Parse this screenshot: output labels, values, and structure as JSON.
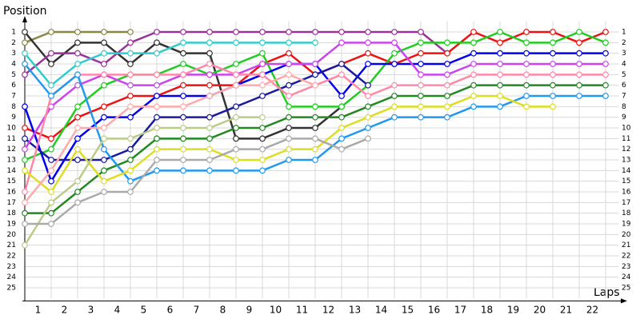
{
  "chart_data": {
    "type": "line",
    "ylabel": "Position",
    "xlabel": "Laps",
    "reversed": true,
    "grid": true,
    "x": [
      0,
      1,
      2,
      3,
      4,
      5,
      6,
      7,
      8,
      9,
      10,
      11,
      12,
      13,
      14,
      15,
      16,
      17,
      18,
      19,
      20,
      21,
      22
    ],
    "xlim": [
      0,
      22.5
    ],
    "xticks": [
      {
        "value": 0.5,
        "label": "1"
      },
      {
        "value": 1.5,
        "label": "2"
      },
      {
        "value": 2.5,
        "label": "3"
      },
      {
        "value": 3.5,
        "label": "4"
      },
      {
        "value": 4.5,
        "label": "5"
      },
      {
        "value": 5.5,
        "label": "6"
      },
      {
        "value": 6.5,
        "label": "7"
      },
      {
        "value": 7.5,
        "label": "8"
      },
      {
        "value": 8.5,
        "label": "9"
      },
      {
        "value": 9.5,
        "label": "10"
      },
      {
        "value": 10.5,
        "label": "11"
      },
      {
        "value": 11.5,
        "label": "12"
      },
      {
        "value": 12.5,
        "label": "13"
      },
      {
        "value": 13.5,
        "label": "14"
      },
      {
        "value": 14.5,
        "label": "15"
      },
      {
        "value": 15.5,
        "label": "16"
      },
      {
        "value": 16.5,
        "label": "17"
      },
      {
        "value": 17.5,
        "label": "18"
      },
      {
        "value": 18.5,
        "label": "19"
      },
      {
        "value": 19.5,
        "label": "20"
      },
      {
        "value": 20.5,
        "label": "21"
      },
      {
        "value": 21.5,
        "label": "22"
      }
    ],
    "ylim": [
      0,
      26
    ],
    "yticks": [
      1,
      2,
      3,
      4,
      5,
      6,
      7,
      8,
      9,
      10,
      11,
      12,
      13,
      14,
      15,
      16,
      17,
      18,
      19,
      20,
      21,
      22,
      23,
      24,
      25
    ],
    "series": [
      {
        "color": "#888844",
        "values": [
          2,
          1,
          1,
          1,
          1,
          null,
          null,
          null,
          null,
          null,
          null,
          null,
          null,
          null,
          null,
          null,
          null,
          null,
          null,
          null,
          null,
          null,
          null
        ]
      },
      {
        "color": "#333333",
        "values": [
          1,
          4,
          2,
          2,
          4,
          2,
          3,
          3,
          11,
          11,
          10,
          10,
          8,
          null,
          null,
          null,
          null,
          null,
          null,
          null,
          null,
          null,
          null
        ]
      },
      {
        "color": "#993399",
        "values": [
          5,
          3,
          3,
          4,
          2,
          1,
          1,
          1,
          1,
          1,
          1,
          1,
          1,
          1,
          1,
          1,
          3,
          null,
          null,
          null,
          null,
          null,
          null
        ]
      },
      {
        "color": "#33cccc",
        "values": [
          3,
          6,
          4,
          3,
          3,
          3,
          2,
          2,
          2,
          2,
          2,
          2,
          null,
          null,
          null,
          null,
          null,
          null,
          null,
          null,
          null,
          null,
          null
        ]
      },
      {
        "color": "#ee1111",
        "values": [
          10,
          11,
          9,
          8,
          7,
          7,
          6,
          6,
          6,
          4,
          3,
          5,
          4,
          3,
          4,
          3,
          3,
          1,
          2,
          1,
          1,
          2,
          1
        ]
      },
      {
        "color": "#22cc22",
        "values": [
          13,
          12,
          8,
          6,
          5,
          5,
          4,
          5,
          4,
          3,
          8,
          8,
          8,
          6,
          3,
          2,
          2,
          2,
          1,
          2,
          2,
          1,
          2
        ]
      },
      {
        "color": "#0000ee",
        "values": [
          8,
          15,
          11,
          9,
          9,
          7,
          7,
          7,
          6,
          5,
          4,
          4,
          7,
          4,
          4,
          4,
          4,
          3,
          3,
          3,
          3,
          3,
          3
        ]
      },
      {
        "color": "#1a1aa0",
        "values": [
          11,
          13,
          13,
          13,
          12,
          9,
          9,
          9,
          8,
          7,
          6,
          5,
          4,
          6,
          null,
          null,
          null,
          null,
          null,
          null,
          null,
          null,
          null
        ]
      },
      {
        "color": "#cc44ee",
        "values": [
          12,
          8,
          6,
          5,
          6,
          6,
          5,
          5,
          5,
          4,
          4,
          4,
          2,
          2,
          2,
          5,
          5,
          4,
          4,
          4,
          4,
          4,
          4
        ]
      },
      {
        "color": "#ff88aa",
        "values": [
          16,
          7,
          5,
          5,
          5,
          5,
          5,
          4,
          5,
          5,
          7,
          6,
          5,
          7,
          6,
          6,
          6,
          5,
          5,
          5,
          5,
          5,
          5
        ]
      },
      {
        "color": "#228822",
        "values": [
          18,
          18,
          16,
          14,
          13,
          11,
          11,
          11,
          10,
          10,
          9,
          9,
          9,
          8,
          7,
          7,
          7,
          6,
          6,
          6,
          6,
          6,
          6
        ]
      },
      {
        "color": "#2299ee",
        "values": [
          4,
          7,
          5,
          12,
          15,
          14,
          14,
          14,
          14,
          14,
          13,
          13,
          11,
          10,
          9,
          9,
          9,
          8,
          8,
          7,
          7,
          7,
          7
        ]
      },
      {
        "color": "#dddd22",
        "values": [
          14,
          16,
          12,
          15,
          14,
          12,
          12,
          12,
          13,
          13,
          12,
          12,
          10,
          9,
          8,
          8,
          8,
          7,
          7,
          8,
          8,
          null,
          null
        ]
      },
      {
        "color": "#bbcc88",
        "values": [
          21,
          17,
          15,
          11,
          11,
          10,
          10,
          10,
          9,
          9,
          null,
          null,
          null,
          null,
          null,
          null,
          null,
          null,
          null,
          null,
          null,
          null,
          null
        ]
      },
      {
        "color": "#aaaaaa",
        "values": [
          19,
          19,
          17,
          16,
          16,
          13,
          13,
          13,
          12,
          12,
          11,
          11,
          12,
          11,
          null,
          null,
          null,
          null,
          null,
          null,
          null,
          null,
          null
        ]
      },
      {
        "color": "#ffaaaa",
        "values": [
          17,
          14,
          10,
          10,
          8,
          8,
          8,
          7,
          6,
          6,
          5,
          6,
          null,
          null,
          null,
          null,
          null,
          null,
          null,
          null,
          null,
          null,
          null
        ]
      }
    ]
  }
}
